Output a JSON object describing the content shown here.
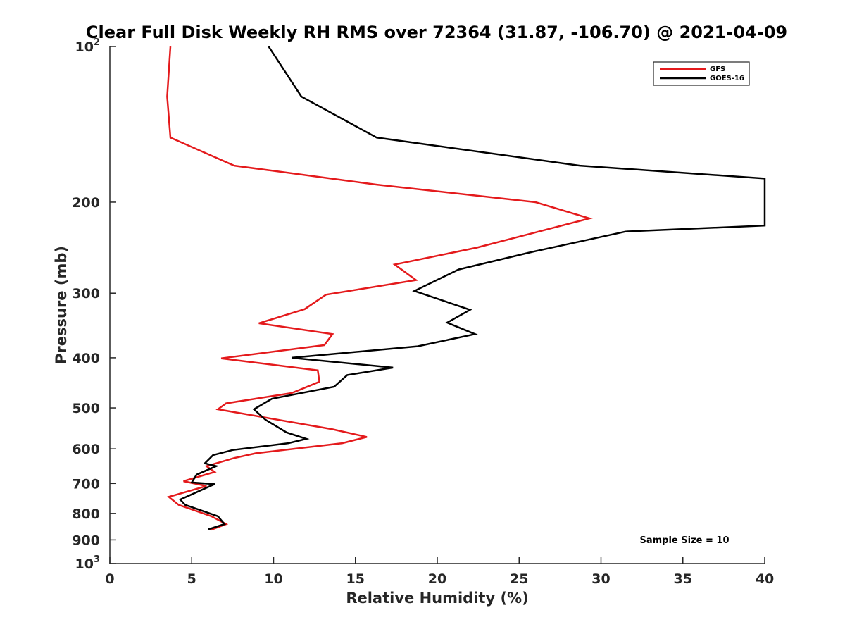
{
  "chart_data": {
    "type": "line",
    "title": "Clear Full Disk Weekly RH RMS over 72364 (31.87, -106.70) @ 2021-04-09",
    "xlabel": "Relative Humidity (%)",
    "ylabel": "Pressure (mb)",
    "xlim": [
      0,
      40
    ],
    "ylim": [
      100,
      1000
    ],
    "yscale": "log",
    "y_reversed": true,
    "grid": false,
    "legend_position": "top-right",
    "x_ticks": [
      "0",
      "5",
      "10",
      "15",
      "20",
      "25",
      "30",
      "35",
      "40"
    ],
    "x_tick_values": [
      0,
      5,
      10,
      15,
      20,
      25,
      30,
      35,
      40
    ],
    "y_ticks": [
      {
        "value": 100,
        "base": "10",
        "exp": "2"
      },
      {
        "value": 200,
        "base": "200",
        "exp": ""
      },
      {
        "value": 300,
        "base": "300",
        "exp": ""
      },
      {
        "value": 400,
        "base": "400",
        "exp": ""
      },
      {
        "value": 500,
        "base": "500",
        "exp": ""
      },
      {
        "value": 600,
        "base": "600",
        "exp": ""
      },
      {
        "value": 700,
        "base": "700",
        "exp": ""
      },
      {
        "value": 800,
        "base": "800",
        "exp": ""
      },
      {
        "value": 900,
        "base": "900",
        "exp": ""
      },
      {
        "value": 1000,
        "base": "10",
        "exp": "3"
      }
    ],
    "annotation": "Sample Size = 10",
    "series": [
      {
        "name": "GFS",
        "color": "#e41a1c",
        "x": [
          3.7,
          3.5,
          3.7,
          7.6,
          16.3,
          26.0,
          29.3,
          22.4,
          17.4,
          18.7,
          13.2,
          11.9,
          9.1,
          13.6,
          13.1,
          6.8,
          12.7,
          12.8,
          11.1,
          7.1,
          6.6,
          13.6,
          15.7,
          14.2,
          8.9,
          7.6,
          5.9,
          6.4,
          4.5,
          5.9,
          3.6,
          4.2,
          6.2,
          7.1,
          6.2
        ],
        "y": [
          100,
          125,
          150,
          170,
          185,
          200,
          215,
          245,
          264,
          283,
          302,
          322,
          343,
          360,
          378,
          401,
          423,
          445,
          468,
          490,
          503,
          550,
          569,
          585,
          612,
          625,
          648,
          665,
          693,
          708,
          743,
          770,
          810,
          839,
          860
        ]
      },
      {
        "name": "GOES-16",
        "color": "#000000",
        "x": [
          9.7,
          11.7,
          16.3,
          28.7,
          40.0,
          40.0,
          31.5,
          25.7,
          21.3,
          18.6,
          22.0,
          20.6,
          22.3,
          18.8,
          11.1,
          17.3,
          14.5,
          13.7,
          9.9,
          8.8,
          9.5,
          10.8,
          12.0,
          10.9,
          7.5,
          6.3,
          5.8,
          6.5,
          5.3,
          5.0,
          6.4,
          4.3,
          4.6,
          6.6,
          7.0,
          6.0
        ],
        "y": [
          100,
          125,
          150,
          170,
          180,
          222,
          228,
          250,
          270,
          297,
          323,
          342,
          360,
          380,
          400,
          418,
          432,
          455,
          480,
          503,
          527,
          558,
          574,
          585,
          603,
          617,
          640,
          648,
          673,
          697,
          702,
          752,
          770,
          810,
          839,
          859
        ]
      }
    ]
  }
}
